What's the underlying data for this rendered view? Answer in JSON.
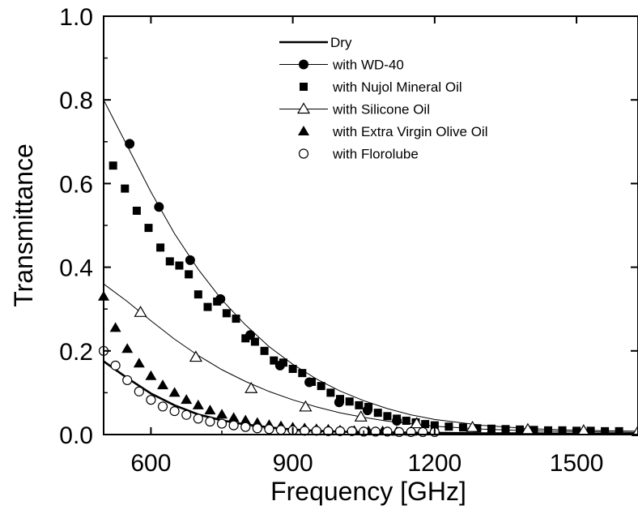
{
  "chart_data": {
    "type": "line",
    "title": "",
    "xlabel": "Frequency [GHz]",
    "ylabel": "Transmittance",
    "xlim": [
      500,
      1630
    ],
    "ylim": [
      0,
      1.0
    ],
    "x_ticks": [
      "600",
      "900",
      "1200",
      "1500"
    ],
    "x_tick_values": [
      600,
      900,
      1200,
      1500
    ],
    "y_ticks": [
      "0.0",
      "0.2",
      "0.4",
      "0.6",
      "0.8",
      "1.0"
    ],
    "y_tick_values": [
      0,
      0.2,
      0.4,
      0.6,
      0.8,
      1.0
    ],
    "grid": false,
    "legend_position": "top-right",
    "series": [
      {
        "name": "Dry",
        "style": "line",
        "marker": "none",
        "color": "#000000",
        "x": [
          500,
          550,
          600,
          650,
          700,
          750,
          800,
          850,
          900,
          950,
          1000,
          1100,
          1200,
          1300,
          1400,
          1500,
          1630
        ],
        "y": [
          0.175,
          0.135,
          0.098,
          0.07,
          0.048,
          0.034,
          0.024,
          0.017,
          0.012,
          0.009,
          0.007,
          0.005,
          0.004,
          0.003,
          0.003,
          0.002,
          0.002
        ]
      },
      {
        "name": "with WD-40",
        "style": "line+markers",
        "marker": "filled-circle",
        "color": "#000000",
        "x": [
          500,
          550,
          600,
          650,
          700,
          750,
          800,
          850,
          900,
          950,
          1000,
          1050,
          1100,
          1150,
          1200,
          1300,
          1400,
          1500,
          1630
        ],
        "y": [
          0.8,
          0.69,
          0.58,
          0.48,
          0.395,
          0.322,
          0.262,
          0.21,
          0.168,
          0.133,
          0.104,
          0.081,
          0.062,
          0.047,
          0.036,
          0.022,
          0.014,
          0.01,
          0.008
        ],
        "marker_x": [
          555,
          617,
          683,
          747,
          810,
          873,
          935,
          998,
          1058,
          1120
        ],
        "marker_y": [
          0.695,
          0.544,
          0.417,
          0.324,
          0.238,
          0.165,
          0.125,
          0.077,
          0.058,
          0.033
        ]
      },
      {
        "name": "with Nujol Mineral Oil",
        "style": "markers",
        "marker": "filled-square",
        "color": "#000000",
        "x": [
          520,
          545,
          570,
          595,
          620,
          640,
          660,
          680,
          700,
          720,
          740,
          760,
          780,
          800,
          820,
          840,
          860,
          880,
          900,
          920,
          940,
          960,
          980,
          1000,
          1020,
          1040,
          1060,
          1080,
          1100,
          1120,
          1140,
          1160,
          1180,
          1200,
          1230,
          1260,
          1290,
          1320,
          1350,
          1380,
          1410,
          1440,
          1470,
          1500,
          1530,
          1560,
          1590
        ],
        "y": [
          0.643,
          0.588,
          0.535,
          0.494,
          0.447,
          0.414,
          0.404,
          0.383,
          0.335,
          0.305,
          0.318,
          0.29,
          0.277,
          0.23,
          0.222,
          0.2,
          0.177,
          0.172,
          0.157,
          0.147,
          0.126,
          0.116,
          0.1,
          0.085,
          0.079,
          0.07,
          0.066,
          0.052,
          0.044,
          0.038,
          0.033,
          0.029,
          0.025,
          0.022,
          0.019,
          0.017,
          0.015,
          0.014,
          0.013,
          0.012,
          0.011,
          0.01,
          0.01,
          0.009,
          0.009,
          0.008,
          0.008
        ]
      },
      {
        "name": "with Silicone Oil",
        "style": "line+markers",
        "marker": "open-triangle",
        "color": "#000000",
        "x": [
          500,
          550,
          600,
          650,
          700,
          750,
          800,
          850,
          900,
          950,
          1000,
          1050,
          1100,
          1200,
          1300,
          1400,
          1500,
          1630
        ],
        "y": [
          0.36,
          0.318,
          0.272,
          0.228,
          0.189,
          0.155,
          0.127,
          0.103,
          0.083,
          0.066,
          0.052,
          0.041,
          0.032,
          0.02,
          0.013,
          0.009,
          0.007,
          0.005
        ],
        "marker_x": [
          578,
          695,
          812,
          927,
          1044,
          1162,
          1280,
          1397,
          1515,
          1630
        ],
        "marker_y": [
          0.292,
          0.185,
          0.11,
          0.066,
          0.042,
          0.026,
          0.017,
          0.012,
          0.009,
          0.007
        ]
      },
      {
        "name": "with Extra Virgin Olive Oil",
        "style": "markers",
        "marker": "filled-triangle",
        "color": "#000000",
        "x": [
          500,
          525,
          550,
          575,
          600,
          625,
          650,
          675,
          700,
          725,
          750,
          775,
          800,
          825,
          850,
          875,
          900,
          925,
          950,
          975,
          1000,
          1030,
          1060,
          1090,
          1120,
          1150
        ],
        "y": [
          0.33,
          0.255,
          0.205,
          0.17,
          0.14,
          0.118,
          0.1,
          0.083,
          0.07,
          0.058,
          0.048,
          0.04,
          0.034,
          0.028,
          0.023,
          0.02,
          0.017,
          0.015,
          0.013,
          0.012,
          0.01,
          0.009,
          0.008,
          0.008,
          0.007,
          0.007
        ]
      },
      {
        "name": "with Florolube",
        "style": "markers",
        "marker": "open-circle",
        "color": "#000000",
        "x": [
          500,
          525,
          550,
          575,
          600,
          625,
          650,
          675,
          700,
          725,
          750,
          775,
          800,
          825,
          850,
          875,
          900,
          925,
          950,
          975,
          1000,
          1025,
          1050,
          1075,
          1100,
          1125,
          1150,
          1175,
          1200
        ],
        "y": [
          0.2,
          0.165,
          0.13,
          0.103,
          0.083,
          0.067,
          0.056,
          0.047,
          0.038,
          0.031,
          0.026,
          0.022,
          0.018,
          0.015,
          0.013,
          0.011,
          0.01,
          0.009,
          0.009,
          0.008,
          0.008,
          0.008,
          0.007,
          0.007,
          0.007,
          0.006,
          0.006,
          0.006,
          0.006
        ]
      }
    ]
  }
}
